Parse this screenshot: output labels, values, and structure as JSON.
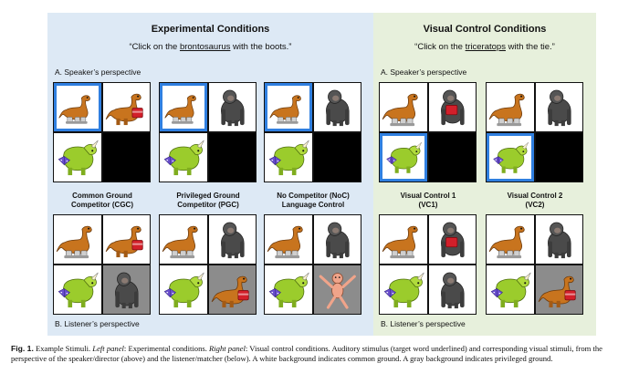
{
  "experimental": {
    "title": "Experimental Conditions",
    "prompt_before": "“Click on the ",
    "prompt_target": "brontosaurus",
    "prompt_after": " with the boots.”",
    "speaker_label": "A. Speaker’s perspective",
    "listener_label": "B. Listener’s perspective",
    "conditions": [
      {
        "line1": "Common Ground",
        "line2": "Competitor (CGC)"
      },
      {
        "line1": "Privileged Ground",
        "line2": "Competitor (PGC)"
      },
      {
        "line1": "No Competitor (NoC)",
        "line2": "Language Control"
      }
    ]
  },
  "visual_control": {
    "title": "Visual Control Conditions",
    "prompt_before": "“Click on the ",
    "prompt_target": "triceratops",
    "prompt_after": " with the tie.”",
    "speaker_label": "A. Speaker’s perspective",
    "listener_label": "B. Listener’s perspective",
    "conditions": [
      {
        "line1": "Visual Control 1",
        "line2": "(VC1)"
      },
      {
        "line1": "Visual Control 2",
        "line2": "(VC2)"
      }
    ]
  },
  "caption": {
    "fig_label": "Fig. 1.",
    "text1": " Example Stimuli. ",
    "left_label": "Left panel",
    "text2": ": Experimental conditions. ",
    "right_label": "Right panel",
    "text3": ": Visual control conditions. Auditory stimulus (target word underlined) and corresponding visual stimuli, from the perspective of the speaker/director (above) and the listener/matcher (below). A white background indicates common ground. A gray background indicates privileged ground."
  },
  "colors": {
    "left_bg": "#dde9f5",
    "right_bg": "#e7f0dc",
    "selection": "#2f7fe0"
  }
}
